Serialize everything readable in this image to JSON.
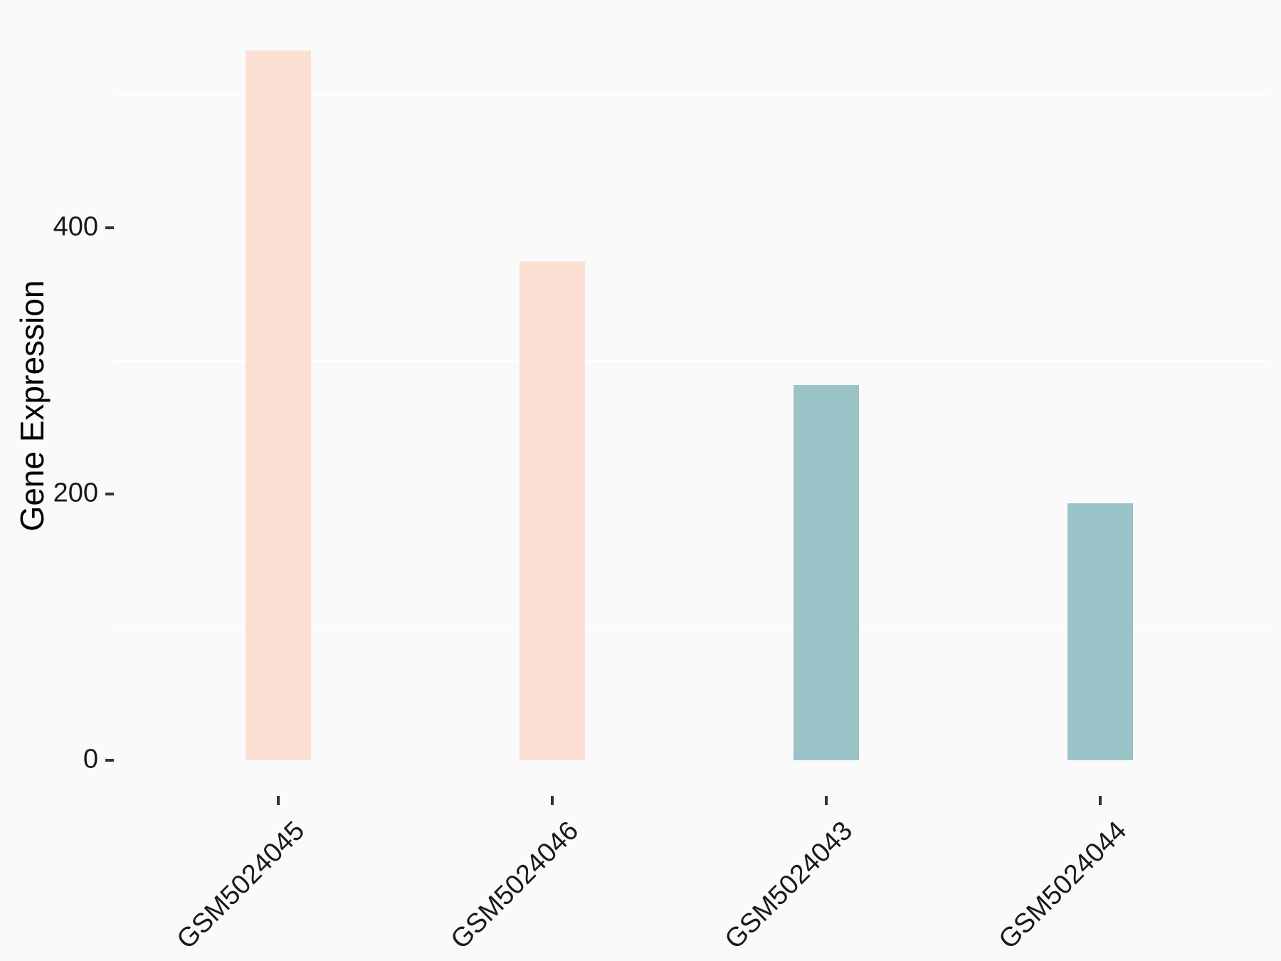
{
  "chart_data": {
    "type": "bar",
    "title": "",
    "xlabel": "",
    "ylabel": "Gene Expression",
    "categories": [
      "GSM5024045",
      "GSM5024046",
      "GSM5024043",
      "GSM5024044"
    ],
    "values": [
      533,
      375,
      282,
      193
    ],
    "bar_colors": [
      "#fddfd3",
      "#fddfd3",
      "#9ac3c7",
      "#9ac3c7"
    ],
    "y_tick_values": [
      0,
      200,
      400
    ],
    "y_tick_labels": [
      "0",
      "200",
      "400"
    ],
    "minor_gridline_values": [
      100,
      300,
      500
    ],
    "ylim": [
      0,
      560
    ],
    "x_label_rotation_deg": 45,
    "legend": "none",
    "grid": "minor-horizontal-only",
    "colors": {
      "background": "#fafafa",
      "gridline": "#ffffff",
      "tick_mark": "#333333",
      "tick_label": "#1a1a1a",
      "axis_title": "#000000"
    }
  }
}
